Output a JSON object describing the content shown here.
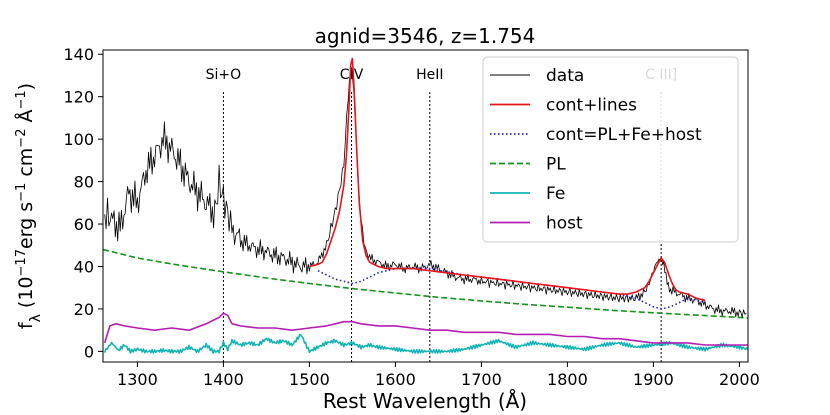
{
  "chart_data": {
    "type": "line",
    "title": "agnid=3546, z=1.754",
    "xlabel": "Rest Wavelength (Å)",
    "ylabel_parts": [
      "f",
      "λ",
      " (10",
      "−17",
      "erg s",
      "−1",
      " cm",
      "−2",
      " Å",
      "−1",
      ")"
    ],
    "xlim": [
      1260,
      2010
    ],
    "ylim": [
      -5,
      142
    ],
    "xticks": [
      1300,
      1400,
      1500,
      1600,
      1700,
      1800,
      1900,
      2000
    ],
    "yticks": [
      0,
      20,
      40,
      60,
      80,
      100,
      120,
      140
    ],
    "grid": false,
    "legend_position": "top-right",
    "line_markers": [
      {
        "label": "Si+O",
        "x": 1400
      },
      {
        "label": "CIV",
        "x": 1549
      },
      {
        "label": "HeII",
        "x": 1640
      },
      {
        "label": "C III]",
        "x": 1909
      }
    ],
    "series": [
      {
        "name": "data",
        "color": "#000000",
        "style": "solid",
        "noisy": true,
        "x": [
          1262,
          1270,
          1280,
          1290,
          1300,
          1310,
          1320,
          1330,
          1340,
          1350,
          1360,
          1370,
          1380,
          1390,
          1395,
          1400,
          1405,
          1410,
          1420,
          1430,
          1440,
          1450,
          1460,
          1470,
          1480,
          1490,
          1500,
          1510,
          1520,
          1525,
          1530,
          1535,
          1540,
          1545,
          1548,
          1550,
          1553,
          1556,
          1560,
          1565,
          1570,
          1580,
          1590,
          1600,
          1610,
          1620,
          1630,
          1640,
          1650,
          1660,
          1670,
          1680,
          1690,
          1700,
          1720,
          1740,
          1760,
          1780,
          1800,
          1820,
          1840,
          1860,
          1880,
          1890,
          1895,
          1900,
          1905,
          1908,
          1912,
          1916,
          1920,
          1930,
          1940,
          1950,
          1960,
          1970,
          1980,
          1990,
          2000,
          2008
        ],
        "y": [
          65,
          62,
          58,
          75,
          70,
          85,
          92,
          100,
          95,
          88,
          80,
          75,
          70,
          65,
          80,
          72,
          65,
          58,
          52,
          50,
          48,
          47,
          45,
          44,
          42,
          40,
          40,
          42,
          50,
          58,
          66,
          76,
          88,
          120,
          134,
          132,
          112,
          85,
          62,
          48,
          44,
          42,
          40,
          41,
          39,
          40,
          39,
          41,
          39,
          37,
          35,
          34,
          34,
          33,
          32,
          31,
          30,
          29,
          28,
          27,
          26,
          25,
          25,
          28,
          32,
          38,
          43,
          44,
          40,
          33,
          29,
          27,
          25,
          24,
          22,
          20,
          19,
          19,
          18,
          18
        ]
      },
      {
        "name": "cont+lines",
        "color": "#e8141c",
        "style": "solid",
        "x": [
          1500,
          1510,
          1515,
          1520,
          1525,
          1530,
          1535,
          1540,
          1543,
          1546,
          1548,
          1550,
          1552,
          1555,
          1558,
          1562,
          1566,
          1570,
          1580,
          1590,
          1600,
          1620,
          1640,
          1660,
          1680,
          1700,
          1720,
          1740,
          1760,
          1780,
          1800,
          1820,
          1840,
          1860,
          1870,
          1880,
          1890,
          1895,
          1900,
          1905,
          1909,
          1913,
          1918,
          1922,
          1926,
          1930,
          1940,
          1950,
          1960
        ],
        "y": [
          40,
          41,
          42,
          46,
          52,
          58,
          66,
          78,
          92,
          115,
          135,
          138,
          124,
          95,
          70,
          52,
          45,
          42,
          40,
          39,
          39,
          39,
          38,
          37,
          36,
          35,
          34,
          33,
          32,
          31,
          30,
          29,
          28,
          27,
          27,
          28,
          30,
          33,
          37,
          41,
          44,
          42,
          36,
          32,
          29,
          28,
          27,
          25,
          24
        ]
      },
      {
        "name": "cont=PL+Fe+host",
        "color": "#1f1fd0",
        "style": "dotted",
        "x": [
          1510,
          1520,
          1530,
          1540,
          1550,
          1560,
          1570,
          1580,
          1590,
          1600,
          1640,
          1680,
          1720,
          1760,
          1800,
          1840,
          1860,
          1870,
          1880,
          1890,
          1900,
          1910,
          1920,
          1930,
          1940,
          1950,
          1960
        ],
        "y": [
          38,
          36,
          34,
          33,
          32,
          33,
          35,
          37,
          38,
          39,
          39,
          36,
          34,
          32,
          30,
          28,
          27,
          26,
          25,
          23,
          21,
          20,
          21,
          23,
          25,
          24,
          23
        ]
      },
      {
        "name": "PL",
        "color": "#14941a",
        "style": "dashed",
        "x": [
          1260,
          1300,
          1350,
          1400,
          1450,
          1500,
          1550,
          1600,
          1650,
          1700,
          1750,
          1800,
          1850,
          1900,
          1950,
          2010
        ],
        "y": [
          48,
          44,
          40.5,
          37.5,
          34.6,
          32,
          29.6,
          27.5,
          25.5,
          23.8,
          22.2,
          20.8,
          19.4,
          18.2,
          17.1,
          15.8
        ]
      },
      {
        "name": "Fe",
        "color": "#14b4b4",
        "style": "solid",
        "noisy": true,
        "x": [
          1262,
          1270,
          1278,
          1285,
          1292,
          1300,
          1310,
          1320,
          1330,
          1340,
          1350,
          1360,
          1370,
          1380,
          1388,
          1395,
          1400,
          1405,
          1410,
          1420,
          1430,
          1440,
          1450,
          1460,
          1470,
          1480,
          1490,
          1500,
          1510,
          1520,
          1530,
          1540,
          1550,
          1560,
          1570,
          1580,
          1600,
          1620,
          1640,
          1660,
          1680,
          1700,
          1720,
          1740,
          1760,
          1780,
          1800,
          1820,
          1840,
          1860,
          1880,
          1900,
          1920,
          1940,
          1960,
          1980,
          2000,
          2010
        ],
        "y": [
          0,
          4,
          0.5,
          3,
          0,
          1,
          0,
          0,
          0.5,
          0,
          0,
          2,
          0,
          3,
          0,
          0,
          4,
          1,
          5,
          3,
          4,
          3,
          6,
          4,
          5,
          3,
          8,
          0,
          2,
          4,
          5,
          3,
          4,
          2,
          3,
          2,
          1,
          0,
          0,
          0,
          1,
          3,
          5,
          2,
          4,
          3,
          2,
          1,
          3,
          4,
          2,
          3,
          4,
          2,
          1,
          3,
          2,
          1
        ]
      },
      {
        "name": "host",
        "color": "#b41eb4",
        "style": "solid",
        "x": [
          1262,
          1268,
          1275,
          1285,
          1300,
          1320,
          1340,
          1360,
          1380,
          1395,
          1400,
          1405,
          1410,
          1420,
          1440,
          1460,
          1480,
          1500,
          1520,
          1530,
          1540,
          1550,
          1560,
          1580,
          1600,
          1620,
          1640,
          1660,
          1680,
          1700,
          1720,
          1740,
          1760,
          1780,
          1800,
          1820,
          1840,
          1860,
          1880,
          1900,
          1920,
          1940,
          1960,
          1980,
          2000,
          2010
        ],
        "y": [
          4,
          12,
          13,
          12,
          11,
          10,
          11,
          10,
          13,
          16,
          18,
          17,
          13,
          12,
          11,
          11,
          10,
          11,
          12,
          13,
          14,
          14,
          13,
          12,
          12,
          11,
          10,
          10,
          9,
          9,
          9,
          8,
          8,
          8,
          7,
          7,
          6,
          6,
          5,
          4,
          4,
          4,
          3,
          3,
          3,
          3
        ]
      }
    ]
  }
}
